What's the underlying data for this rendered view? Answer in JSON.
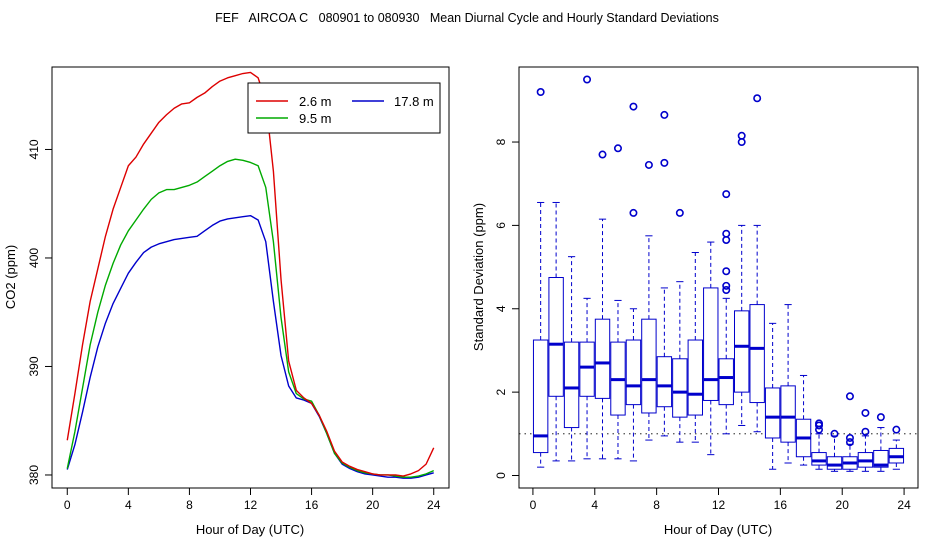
{
  "title": "FEF   AIRCOA C   080901 to 080930   Mean Diurnal Cycle and Hourly Standard Deviations",
  "chart_data": [
    {
      "type": "line",
      "xlabel": "Hour of Day (UTC)",
      "ylabel": "CO2 (ppm)",
      "xlim": [
        -1,
        25
      ],
      "ylim": [
        378.8,
        417.6
      ],
      "xticks": [
        "0",
        "4",
        "8",
        "12",
        "16",
        "20",
        "24"
      ],
      "xtick_values": [
        0,
        4,
        8,
        12,
        16,
        20,
        24
      ],
      "yticks": [
        "380",
        "390",
        "400",
        "410"
      ],
      "ytick_values": [
        380,
        390,
        400,
        410
      ],
      "legend": {
        "position": "top-right"
      },
      "series": [
        {
          "name": "2.6 m",
          "color": "#dd0000",
          "x": [
            0,
            0.5,
            1,
            1.5,
            2,
            2.5,
            3,
            3.5,
            4,
            4.5,
            5,
            5.5,
            6,
            6.5,
            7,
            7.5,
            8,
            8.5,
            9,
            9.5,
            10,
            10.5,
            11,
            11.5,
            12,
            12.5,
            13,
            13.5,
            14,
            14.5,
            15,
            15.5,
            16,
            16.5,
            17,
            17.5,
            18,
            18.5,
            19,
            19.5,
            20,
            20.5,
            21,
            21.5,
            22,
            22.5,
            23,
            23.5,
            24
          ],
          "y": [
            383.2,
            387.5,
            392,
            396,
            399,
            402,
            404.5,
            406.5,
            408.5,
            409.3,
            410.5,
            411.5,
            412.5,
            413.2,
            413.8,
            414.2,
            414.3,
            414.8,
            415.2,
            415.8,
            416.3,
            416.6,
            416.8,
            417,
            417.1,
            416.6,
            414.5,
            408,
            398,
            390.5,
            387.8,
            387.1,
            386.6,
            385.5,
            384,
            382.2,
            381.2,
            380.8,
            380.5,
            380.3,
            380.1,
            380,
            380,
            380,
            379.9,
            380.1,
            380.4,
            381,
            382.5
          ]
        },
        {
          "name": "9.5 m",
          "color": "#00aa00",
          "x": [
            0,
            0.5,
            1,
            1.5,
            2,
            2.5,
            3,
            3.5,
            4,
            4.5,
            5,
            5.5,
            6,
            6.5,
            7,
            7.5,
            8,
            8.5,
            9,
            9.5,
            10,
            10.5,
            11,
            11.5,
            12,
            12.5,
            13,
            13.5,
            14,
            14.5,
            15,
            15.5,
            16,
            16.5,
            17,
            17.5,
            18,
            18.5,
            19,
            19.5,
            20,
            20.5,
            21,
            21.5,
            22,
            22.5,
            23,
            23.5,
            24
          ],
          "y": [
            380.6,
            384,
            388,
            392,
            395,
            397.5,
            399.5,
            401.2,
            402.5,
            403.5,
            404.5,
            405.4,
            406,
            406.3,
            406.3,
            406.5,
            406.7,
            407,
            407.5,
            408,
            408.5,
            408.9,
            409.1,
            409,
            408.8,
            408.5,
            406.5,
            401.5,
            394.5,
            389.5,
            387.5,
            387,
            386.8,
            385.5,
            383.8,
            382,
            381.1,
            380.7,
            380.4,
            380.2,
            380.1,
            380,
            380,
            379.9,
            379.8,
            379.8,
            379.9,
            380.1,
            380.4
          ]
        },
        {
          "name": "17.8 m",
          "color": "#0000cc",
          "x": [
            0,
            0.5,
            1,
            1.5,
            2,
            2.5,
            3,
            3.5,
            4,
            4.5,
            5,
            5.5,
            6,
            6.5,
            7,
            7.5,
            8,
            8.5,
            9,
            9.5,
            10,
            10.5,
            11,
            11.5,
            12,
            12.5,
            13,
            13.5,
            14,
            14.5,
            15,
            15.5,
            16,
            16.5,
            17,
            17.5,
            18,
            18.5,
            19,
            19.5,
            20,
            20.5,
            21,
            21.5,
            22,
            22.5,
            23,
            23.5,
            24
          ],
          "y": [
            380.5,
            382.8,
            385.8,
            389,
            391.8,
            394,
            395.8,
            397.2,
            398.6,
            399.6,
            400.5,
            401,
            401.3,
            401.5,
            401.7,
            401.8,
            401.9,
            402,
            402.5,
            403,
            403.4,
            403.6,
            403.7,
            403.8,
            403.9,
            403.5,
            401.5,
            396,
            391,
            388.2,
            387.1,
            386.9,
            386.6,
            385.4,
            383.8,
            382,
            381,
            380.6,
            380.3,
            380.1,
            380,
            379.9,
            379.8,
            379.8,
            379.7,
            379.7,
            379.8,
            380,
            380.2
          ]
        }
      ]
    },
    {
      "type": "box",
      "xlabel": "Hour of Day (UTC)",
      "ylabel": "Standard Deviation (ppm)",
      "xlim": [
        -0.9,
        24.9
      ],
      "ylim": [
        -0.3,
        9.8
      ],
      "xticks": [
        "0",
        "4",
        "8",
        "12",
        "16",
        "20",
        "24"
      ],
      "xtick_values": [
        0,
        4,
        8,
        12,
        16,
        20,
        24
      ],
      "yticks": [
        "0",
        "2",
        "4",
        "6",
        "8"
      ],
      "ytick_values": [
        0,
        2,
        4,
        6,
        8
      ],
      "reference_line": 1.0,
      "color": "#0000cc",
      "boxes": [
        {
          "hour": 0.5,
          "lower_whisker": 0.2,
          "q1": 0.55,
          "median": 0.95,
          "q3": 3.25,
          "upper_whisker": 6.55,
          "outliers": [
            9.2
          ]
        },
        {
          "hour": 1.5,
          "lower_whisker": 0.35,
          "q1": 1.9,
          "median": 3.15,
          "q3": 4.75,
          "upper_whisker": 6.55,
          "outliers": []
        },
        {
          "hour": 2.5,
          "lower_whisker": 0.35,
          "q1": 1.15,
          "median": 2.1,
          "q3": 3.2,
          "upper_whisker": 5.25,
          "outliers": []
        },
        {
          "hour": 3.5,
          "lower_whisker": 0.4,
          "q1": 1.9,
          "median": 2.6,
          "q3": 3.2,
          "upper_whisker": 4.25,
          "outliers": [
            9.5
          ]
        },
        {
          "hour": 4.5,
          "lower_whisker": 0.4,
          "q1": 1.85,
          "median": 2.7,
          "q3": 3.75,
          "upper_whisker": 6.15,
          "outliers": [
            7.7
          ]
        },
        {
          "hour": 5.5,
          "lower_whisker": 0.4,
          "q1": 1.45,
          "median": 2.3,
          "q3": 3.2,
          "upper_whisker": 4.2,
          "outliers": [
            7.85
          ]
        },
        {
          "hour": 6.5,
          "lower_whisker": 0.35,
          "q1": 1.7,
          "median": 2.15,
          "q3": 3.25,
          "upper_whisker": 4.0,
          "outliers": [
            6.3,
            8.85
          ]
        },
        {
          "hour": 7.5,
          "lower_whisker": 0.85,
          "q1": 1.5,
          "median": 2.3,
          "q3": 3.75,
          "upper_whisker": 5.75,
          "outliers": [
            7.45
          ]
        },
        {
          "hour": 8.5,
          "lower_whisker": 0.95,
          "q1": 1.65,
          "median": 2.15,
          "q3": 2.85,
          "upper_whisker": 4.5,
          "outliers": [
            7.5,
            8.65
          ]
        },
        {
          "hour": 9.5,
          "lower_whisker": 0.8,
          "q1": 1.4,
          "median": 2.0,
          "q3": 2.8,
          "upper_whisker": 4.65,
          "outliers": [
            6.3
          ]
        },
        {
          "hour": 10.5,
          "lower_whisker": 0.8,
          "q1": 1.45,
          "median": 1.95,
          "q3": 3.25,
          "upper_whisker": 5.35,
          "outliers": []
        },
        {
          "hour": 11.5,
          "lower_whisker": 0.5,
          "q1": 1.8,
          "median": 2.3,
          "q3": 4.5,
          "upper_whisker": 5.6,
          "outliers": []
        },
        {
          "hour": 12.5,
          "lower_whisker": 1.0,
          "q1": 1.7,
          "median": 2.35,
          "q3": 2.8,
          "upper_whisker": 4.25,
          "outliers": [
            4.45,
            4.55,
            4.9,
            5.65,
            5.8,
            6.75
          ]
        },
        {
          "hour": 13.5,
          "lower_whisker": 1.2,
          "q1": 2.0,
          "median": 3.1,
          "q3": 3.95,
          "upper_whisker": 6.0,
          "outliers": [
            8.0,
            8.15
          ]
        },
        {
          "hour": 14.5,
          "lower_whisker": 1.05,
          "q1": 1.75,
          "median": 3.05,
          "q3": 4.1,
          "upper_whisker": 6.0,
          "outliers": [
            9.05
          ]
        },
        {
          "hour": 15.5,
          "lower_whisker": 0.15,
          "q1": 0.9,
          "median": 1.4,
          "q3": 2.1,
          "upper_whisker": 3.65,
          "outliers": []
        },
        {
          "hour": 16.5,
          "lower_whisker": 0.3,
          "q1": 0.8,
          "median": 1.4,
          "q3": 2.15,
          "upper_whisker": 4.1,
          "outliers": []
        },
        {
          "hour": 17.5,
          "lower_whisker": 0.25,
          "q1": 0.45,
          "median": 0.9,
          "q3": 1.35,
          "upper_whisker": 2.4,
          "outliers": []
        },
        {
          "hour": 18.5,
          "lower_whisker": 0.15,
          "q1": 0.25,
          "median": 0.35,
          "q3": 0.55,
          "upper_whisker": 1.0,
          "outliers": [
            1.1,
            1.2,
            1.25
          ]
        },
        {
          "hour": 19.5,
          "lower_whisker": 0.1,
          "q1": 0.15,
          "median": 0.25,
          "q3": 0.45,
          "upper_whisker": 0.95,
          "outliers": [
            1.0
          ]
        },
        {
          "hour": 20.5,
          "lower_whisker": 0.1,
          "q1": 0.15,
          "median": 0.3,
          "q3": 0.45,
          "upper_whisker": 0.75,
          "outliers": [
            0.8,
            0.9,
            1.9
          ]
        },
        {
          "hour": 21.5,
          "lower_whisker": 0.1,
          "q1": 0.2,
          "median": 0.35,
          "q3": 0.55,
          "upper_whisker": 0.95,
          "outliers": [
            1.05,
            1.5
          ]
        },
        {
          "hour": 22.5,
          "lower_whisker": 0.1,
          "q1": 0.2,
          "median": 0.25,
          "q3": 0.6,
          "upper_whisker": 1.15,
          "outliers": [
            1.4
          ]
        },
        {
          "hour": 23.5,
          "lower_whisker": 0.15,
          "q1": 0.3,
          "median": 0.45,
          "q3": 0.65,
          "upper_whisker": 0.85,
          "outliers": [
            1.1
          ]
        }
      ]
    }
  ]
}
